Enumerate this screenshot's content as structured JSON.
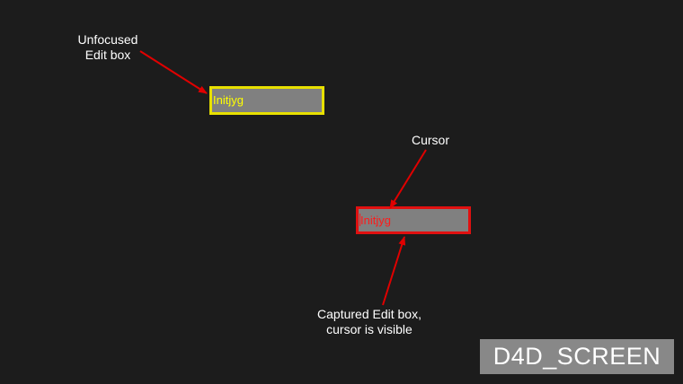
{
  "annotations": {
    "unfocused_line1": "Unfocused",
    "unfocused_line2": "Edit box",
    "cursor": "Cursor",
    "captured_line1": "Captured Edit box,",
    "captured_line2": "cursor is visible"
  },
  "edit_unfocused": {
    "value": "Initjyg",
    "border_color": "#e8e000",
    "text_color": "#ffff00",
    "background": "#808080"
  },
  "edit_captured": {
    "value": "Initjyg",
    "border_color": "#e01010",
    "text_color": "#ff1a1a",
    "background": "#808080",
    "cursor_visible": true
  },
  "arrow_color": "#e00000",
  "screen_label": "D4D_SCREEN"
}
